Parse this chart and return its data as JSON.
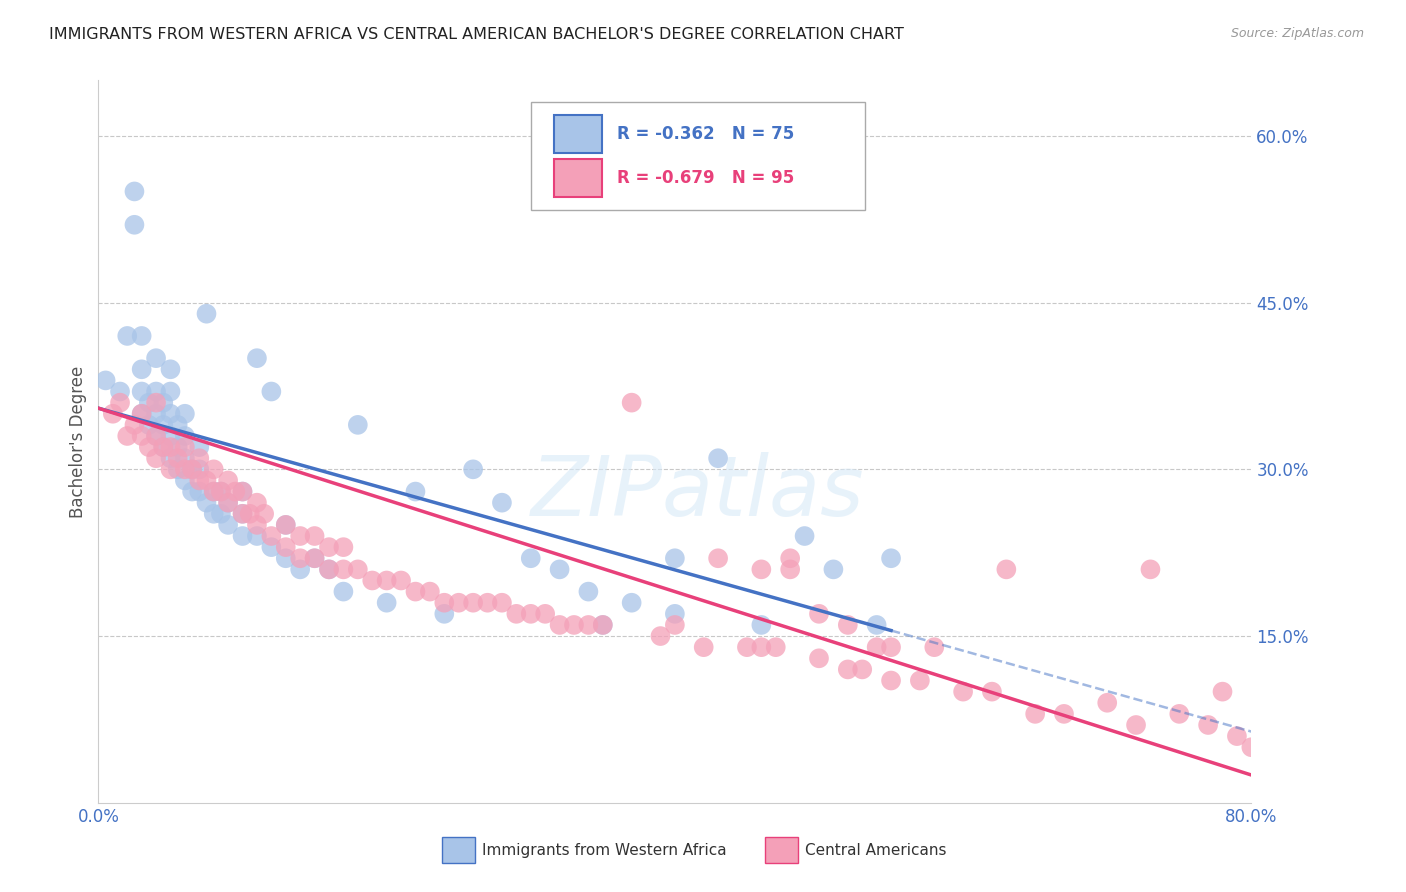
{
  "title": "IMMIGRANTS FROM WESTERN AFRICA VS CENTRAL AMERICAN BACHELOR'S DEGREE CORRELATION CHART",
  "source": "Source: ZipAtlas.com",
  "ylabel": "Bachelor's Degree",
  "xlim": [
    0.0,
    0.8
  ],
  "ylim": [
    0.0,
    0.65
  ],
  "watermark": "ZIPatlas",
  "legend_labels_bottom": [
    "Immigrants from Western Africa",
    "Central Americans"
  ],
  "series1_color": "#a8c4e8",
  "series2_color": "#f4a0b8",
  "line1_color": "#4472c4",
  "line2_color": "#e8407a",
  "background_color": "#ffffff",
  "grid_color": "#c8c8c8",
  "tick_label_color": "#4472c4",
  "ytick_vals": [
    0.15,
    0.3,
    0.45,
    0.6
  ],
  "line1_x0": 0.0,
  "line1_y0": 0.355,
  "line1_x1": 0.55,
  "line1_y1": 0.155,
  "line2_x0": 0.0,
  "line2_y0": 0.355,
  "line2_x1": 0.8,
  "line2_y1": 0.025,
  "series1_x": [
    0.005,
    0.015,
    0.02,
    0.025,
    0.025,
    0.03,
    0.03,
    0.03,
    0.03,
    0.035,
    0.035,
    0.04,
    0.04,
    0.04,
    0.04,
    0.045,
    0.045,
    0.045,
    0.05,
    0.05,
    0.05,
    0.05,
    0.05,
    0.055,
    0.055,
    0.055,
    0.06,
    0.06,
    0.06,
    0.06,
    0.065,
    0.065,
    0.07,
    0.07,
    0.07,
    0.075,
    0.075,
    0.08,
    0.08,
    0.085,
    0.085,
    0.09,
    0.09,
    0.1,
    0.1,
    0.1,
    0.11,
    0.11,
    0.12,
    0.12,
    0.13,
    0.13,
    0.14,
    0.15,
    0.16,
    0.17,
    0.18,
    0.2,
    0.22,
    0.24,
    0.26,
    0.28,
    0.3,
    0.32,
    0.34,
    0.37,
    0.4,
    0.43,
    0.46,
    0.49,
    0.51,
    0.54,
    0.55,
    0.35,
    0.4
  ],
  "series1_y": [
    0.38,
    0.37,
    0.42,
    0.52,
    0.55,
    0.35,
    0.37,
    0.39,
    0.42,
    0.34,
    0.36,
    0.33,
    0.35,
    0.37,
    0.4,
    0.32,
    0.34,
    0.36,
    0.31,
    0.33,
    0.35,
    0.37,
    0.39,
    0.3,
    0.32,
    0.34,
    0.29,
    0.31,
    0.33,
    0.35,
    0.28,
    0.3,
    0.28,
    0.3,
    0.32,
    0.27,
    0.44,
    0.26,
    0.28,
    0.26,
    0.28,
    0.25,
    0.27,
    0.24,
    0.26,
    0.28,
    0.24,
    0.4,
    0.23,
    0.37,
    0.22,
    0.25,
    0.21,
    0.22,
    0.21,
    0.19,
    0.34,
    0.18,
    0.28,
    0.17,
    0.3,
    0.27,
    0.22,
    0.21,
    0.19,
    0.18,
    0.17,
    0.31,
    0.16,
    0.24,
    0.21,
    0.16,
    0.22,
    0.16,
    0.22
  ],
  "series2_x": [
    0.01,
    0.015,
    0.02,
    0.025,
    0.03,
    0.03,
    0.035,
    0.04,
    0.04,
    0.04,
    0.045,
    0.05,
    0.05,
    0.055,
    0.06,
    0.06,
    0.065,
    0.07,
    0.07,
    0.075,
    0.08,
    0.08,
    0.085,
    0.09,
    0.09,
    0.095,
    0.1,
    0.1,
    0.105,
    0.11,
    0.11,
    0.115,
    0.12,
    0.13,
    0.13,
    0.14,
    0.14,
    0.15,
    0.15,
    0.16,
    0.16,
    0.17,
    0.17,
    0.18,
    0.19,
    0.2,
    0.21,
    0.22,
    0.23,
    0.24,
    0.25,
    0.26,
    0.27,
    0.28,
    0.29,
    0.3,
    0.31,
    0.32,
    0.33,
    0.34,
    0.35,
    0.37,
    0.39,
    0.4,
    0.42,
    0.43,
    0.45,
    0.46,
    0.47,
    0.48,
    0.5,
    0.52,
    0.53,
    0.54,
    0.55,
    0.57,
    0.6,
    0.62,
    0.63,
    0.65,
    0.67,
    0.7,
    0.72,
    0.73,
    0.75,
    0.77,
    0.78,
    0.79,
    0.8,
    0.52,
    0.48,
    0.5,
    0.55,
    0.46,
    0.58
  ],
  "series2_y": [
    0.35,
    0.36,
    0.33,
    0.34,
    0.33,
    0.35,
    0.32,
    0.31,
    0.33,
    0.36,
    0.32,
    0.3,
    0.32,
    0.31,
    0.3,
    0.32,
    0.3,
    0.29,
    0.31,
    0.29,
    0.28,
    0.3,
    0.28,
    0.27,
    0.29,
    0.28,
    0.26,
    0.28,
    0.26,
    0.25,
    0.27,
    0.26,
    0.24,
    0.23,
    0.25,
    0.22,
    0.24,
    0.22,
    0.24,
    0.21,
    0.23,
    0.21,
    0.23,
    0.21,
    0.2,
    0.2,
    0.2,
    0.19,
    0.19,
    0.18,
    0.18,
    0.18,
    0.18,
    0.18,
    0.17,
    0.17,
    0.17,
    0.16,
    0.16,
    0.16,
    0.16,
    0.36,
    0.15,
    0.16,
    0.14,
    0.22,
    0.14,
    0.14,
    0.14,
    0.22,
    0.13,
    0.12,
    0.12,
    0.14,
    0.11,
    0.11,
    0.1,
    0.1,
    0.21,
    0.08,
    0.08,
    0.09,
    0.07,
    0.21,
    0.08,
    0.07,
    0.1,
    0.06,
    0.05,
    0.16,
    0.21,
    0.17,
    0.14,
    0.21,
    0.14
  ]
}
